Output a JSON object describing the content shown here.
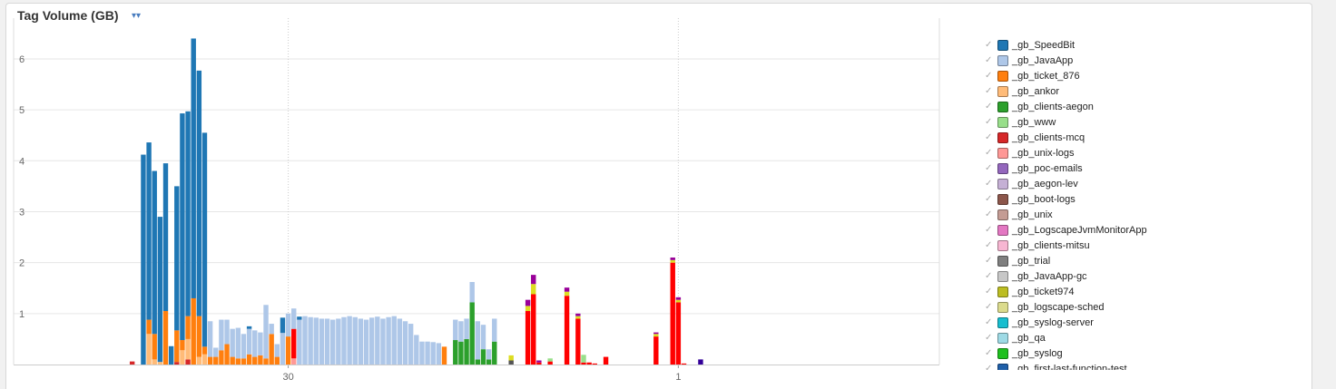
{
  "panel": {
    "title": "Tag Volume (GB)",
    "chevron_icon": "chevron-double-down-icon"
  },
  "legend": {
    "check_glyph": "✓",
    "items": [
      {
        "label": "_gb_SpeedBit",
        "color": "#1f77b4"
      },
      {
        "label": "_gb_JavaApp",
        "color": "#aec7e8"
      },
      {
        "label": "_gb_ticket_876",
        "color": "#ff7f0e"
      },
      {
        "label": "_gb_ankor",
        "color": "#ffbb78"
      },
      {
        "label": "_gb_clients-aegon",
        "color": "#2ca02c"
      },
      {
        "label": "_gb_www",
        "color": "#98df8a"
      },
      {
        "label": "_gb_clients-mcq",
        "color": "#d62728"
      },
      {
        "label": "_gb_unix-logs",
        "color": "#ff9896"
      },
      {
        "label": "_gb_poc-emails",
        "color": "#9467bd"
      },
      {
        "label": "_gb_aegon-lev",
        "color": "#c5b0d5"
      },
      {
        "label": "_gb_boot-logs",
        "color": "#8c564b"
      },
      {
        "label": "_gb_unix",
        "color": "#c49c94"
      },
      {
        "label": "_gb_LogscapeJvmMonitorApp",
        "color": "#e377c2"
      },
      {
        "label": "_gb_clients-mitsu",
        "color": "#f7b6d2"
      },
      {
        "label": "_gb_trial",
        "color": "#7f7f7f"
      },
      {
        "label": "_gb_JavaApp-gc",
        "color": "#c7c7c7"
      },
      {
        "label": "_gb_ticket974",
        "color": "#bcbd22"
      },
      {
        "label": "_gb_logscape-sched",
        "color": "#dbdb8d"
      },
      {
        "label": "_gb_syslog-server",
        "color": "#17becf"
      },
      {
        "label": "_gb_qa",
        "color": "#9edae5"
      },
      {
        "label": "_gb_syslog",
        "color": "#1ec01e"
      },
      {
        "label": "_gb_first-last-function-test",
        "color": "#1f5fa8"
      }
    ]
  },
  "chart_data": {
    "type": "bar",
    "stacked": true,
    "yticks": [
      "1",
      "2",
      "3",
      "4",
      "5",
      "6"
    ],
    "ylim": [
      0,
      6.8
    ],
    "xticks": [
      {
        "label": "30",
        "index": 42
      },
      {
        "label": "1",
        "index": 112
      }
    ],
    "grid": true,
    "legend_placement": "right",
    "extra_colors": {
      "bright_red": "#ff0000",
      "magenta": "#990099",
      "yellow": "#dddd22",
      "navy": "#330099",
      "dark_green": "#229922"
    },
    "bars": [
      {
        "i": 14,
        "stack": [
          {
            "c": "#d62728",
            "v": 0.06
          }
        ]
      },
      {
        "i": 16,
        "stack": [
          {
            "c": "#1f77b4",
            "v": 4.12
          }
        ]
      },
      {
        "i": 17,
        "stack": [
          {
            "c": "#ffbb78",
            "v": 0.6
          },
          {
            "c": "#ff7f0e",
            "v": 0.28
          },
          {
            "c": "#1f77b4",
            "v": 3.48
          }
        ]
      },
      {
        "i": 18,
        "stack": [
          {
            "c": "#ffbb78",
            "v": 0.1
          },
          {
            "c": "#ff7f0e",
            "v": 0.5
          },
          {
            "c": "#1f77b4",
            "v": 3.2
          }
        ]
      },
      {
        "i": 19,
        "stack": [
          {
            "c": "#ffbb78",
            "v": 0.05
          },
          {
            "c": "#1f77b4",
            "v": 2.85
          }
        ]
      },
      {
        "i": 20,
        "stack": [
          {
            "c": "#ff7f0e",
            "v": 1.05
          },
          {
            "c": "#1f77b4",
            "v": 2.9
          }
        ]
      },
      {
        "i": 21,
        "stack": [
          {
            "c": "#1f77b4",
            "v": 0.36
          }
        ]
      },
      {
        "i": 22,
        "stack": [
          {
            "c": "#d62728",
            "v": 0.05
          },
          {
            "c": "#ff7f0e",
            "v": 0.62
          },
          {
            "c": "#1f77b4",
            "v": 2.83
          }
        ]
      },
      {
        "i": 23,
        "stack": [
          {
            "c": "#ffbb78",
            "v": 0.28
          },
          {
            "c": "#ff7f0e",
            "v": 0.2
          },
          {
            "c": "#1f77b4",
            "v": 4.45
          }
        ]
      },
      {
        "i": 24,
        "stack": [
          {
            "c": "#d62728",
            "v": 0.1
          },
          {
            "c": "#ffbb78",
            "v": 0.4
          },
          {
            "c": "#ff7f0e",
            "v": 0.45
          },
          {
            "c": "#1f77b4",
            "v": 4.02
          }
        ]
      },
      {
        "i": 25,
        "stack": [
          {
            "c": "#ff7f0e",
            "v": 1.3
          },
          {
            "c": "#1f77b4",
            "v": 5.1
          }
        ]
      },
      {
        "i": 26,
        "stack": [
          {
            "c": "#ffbb78",
            "v": 0.15
          },
          {
            "c": "#ff7f0e",
            "v": 0.8
          },
          {
            "c": "#1f77b4",
            "v": 4.82
          }
        ]
      },
      {
        "i": 27,
        "stack": [
          {
            "c": "#ffbb78",
            "v": 0.2
          },
          {
            "c": "#ff7f0e",
            "v": 0.15
          },
          {
            "c": "#1f77b4",
            "v": 4.2
          }
        ]
      },
      {
        "i": 28,
        "stack": [
          {
            "c": "#ff7f0e",
            "v": 0.15
          },
          {
            "c": "#aec7e8",
            "v": 0.7
          }
        ]
      },
      {
        "i": 29,
        "stack": [
          {
            "c": "#ff7f0e",
            "v": 0.15
          },
          {
            "c": "#aec7e8",
            "v": 0.18
          }
        ]
      },
      {
        "i": 30,
        "stack": [
          {
            "c": "#ff7f0e",
            "v": 0.28
          },
          {
            "c": "#aec7e8",
            "v": 0.6
          }
        ]
      },
      {
        "i": 31,
        "stack": [
          {
            "c": "#ff7f0e",
            "v": 0.4
          },
          {
            "c": "#aec7e8",
            "v": 0.48
          }
        ]
      },
      {
        "i": 32,
        "stack": [
          {
            "c": "#ff7f0e",
            "v": 0.15
          },
          {
            "c": "#aec7e8",
            "v": 0.55
          }
        ]
      },
      {
        "i": 33,
        "stack": [
          {
            "c": "#ff7f0e",
            "v": 0.12
          },
          {
            "c": "#aec7e8",
            "v": 0.6
          }
        ]
      },
      {
        "i": 34,
        "stack": [
          {
            "c": "#ff7f0e",
            "v": 0.12
          },
          {
            "c": "#aec7e8",
            "v": 0.48
          }
        ]
      },
      {
        "i": 35,
        "stack": [
          {
            "c": "#ff7f0e",
            "v": 0.2
          },
          {
            "c": "#aec7e8",
            "v": 0.5
          },
          {
            "c": "#1f77b4",
            "v": 0.05
          }
        ]
      },
      {
        "i": 36,
        "stack": [
          {
            "c": "#ff7f0e",
            "v": 0.15
          },
          {
            "c": "#aec7e8",
            "v": 0.52
          }
        ]
      },
      {
        "i": 37,
        "stack": [
          {
            "c": "#ff7f0e",
            "v": 0.18
          },
          {
            "c": "#aec7e8",
            "v": 0.45
          }
        ]
      },
      {
        "i": 38,
        "stack": [
          {
            "c": "#ff7f0e",
            "v": 0.12
          },
          {
            "c": "#aec7e8",
            "v": 1.05
          }
        ]
      },
      {
        "i": 39,
        "stack": [
          {
            "c": "#ff7f0e",
            "v": 0.6
          },
          {
            "c": "#aec7e8",
            "v": 0.2
          }
        ]
      },
      {
        "i": 40,
        "stack": [
          {
            "c": "#ff7f0e",
            "v": 0.15
          },
          {
            "c": "#aec7e8",
            "v": 0.25
          }
        ]
      },
      {
        "i": 41,
        "stack": [
          {
            "c": "#aec7e8",
            "v": 0.62
          },
          {
            "c": "#1f77b4",
            "v": 0.3
          }
        ]
      },
      {
        "i": 42,
        "stack": [
          {
            "c": "#ff7f0e",
            "v": 0.55
          },
          {
            "c": "#aec7e8",
            "v": 0.45
          }
        ]
      },
      {
        "i": 43,
        "stack": [
          {
            "c": "#ff9896",
            "v": 0.12
          },
          {
            "c": "#ff0000",
            "v": 0.58
          },
          {
            "c": "#aec7e8",
            "v": 0.4
          }
        ]
      },
      {
        "i": 44,
        "stack": [
          {
            "c": "#aec7e8",
            "v": 0.88
          },
          {
            "c": "#1f77b4",
            "v": 0.06
          }
        ]
      },
      {
        "i": 45,
        "stack": [
          {
            "c": "#aec7e8",
            "v": 0.95
          }
        ]
      },
      {
        "i": 46,
        "stack": [
          {
            "c": "#aec7e8",
            "v": 0.93
          }
        ]
      },
      {
        "i": 47,
        "stack": [
          {
            "c": "#aec7e8",
            "v": 0.92
          }
        ]
      },
      {
        "i": 48,
        "stack": [
          {
            "c": "#aec7e8",
            "v": 0.9
          }
        ]
      },
      {
        "i": 49,
        "stack": [
          {
            "c": "#aec7e8",
            "v": 0.9
          }
        ]
      },
      {
        "i": 50,
        "stack": [
          {
            "c": "#aec7e8",
            "v": 0.88
          }
        ]
      },
      {
        "i": 51,
        "stack": [
          {
            "c": "#aec7e8",
            "v": 0.9
          }
        ]
      },
      {
        "i": 52,
        "stack": [
          {
            "c": "#aec7e8",
            "v": 0.93
          }
        ]
      },
      {
        "i": 53,
        "stack": [
          {
            "c": "#aec7e8",
            "v": 0.95
          }
        ]
      },
      {
        "i": 54,
        "stack": [
          {
            "c": "#aec7e8",
            "v": 0.93
          }
        ]
      },
      {
        "i": 55,
        "stack": [
          {
            "c": "#aec7e8",
            "v": 0.9
          }
        ]
      },
      {
        "i": 56,
        "stack": [
          {
            "c": "#aec7e8",
            "v": 0.88
          }
        ]
      },
      {
        "i": 57,
        "stack": [
          {
            "c": "#aec7e8",
            "v": 0.92
          }
        ]
      },
      {
        "i": 58,
        "stack": [
          {
            "c": "#aec7e8",
            "v": 0.94
          }
        ]
      },
      {
        "i": 59,
        "stack": [
          {
            "c": "#aec7e8",
            "v": 0.9
          }
        ]
      },
      {
        "i": 60,
        "stack": [
          {
            "c": "#aec7e8",
            "v": 0.93
          }
        ]
      },
      {
        "i": 61,
        "stack": [
          {
            "c": "#aec7e8",
            "v": 0.95
          }
        ]
      },
      {
        "i": 62,
        "stack": [
          {
            "c": "#aec7e8",
            "v": 0.9
          }
        ]
      },
      {
        "i": 63,
        "stack": [
          {
            "c": "#aec7e8",
            "v": 0.85
          }
        ]
      },
      {
        "i": 64,
        "stack": [
          {
            "c": "#aec7e8",
            "v": 0.8
          }
        ]
      },
      {
        "i": 65,
        "stack": [
          {
            "c": "#aec7e8",
            "v": 0.58
          }
        ]
      },
      {
        "i": 66,
        "stack": [
          {
            "c": "#aec7e8",
            "v": 0.45
          }
        ]
      },
      {
        "i": 67,
        "stack": [
          {
            "c": "#aec7e8",
            "v": 0.45
          }
        ]
      },
      {
        "i": 68,
        "stack": [
          {
            "c": "#aec7e8",
            "v": 0.44
          }
        ]
      },
      {
        "i": 69,
        "stack": [
          {
            "c": "#aec7e8",
            "v": 0.42
          }
        ]
      },
      {
        "i": 70,
        "stack": [
          {
            "c": "#ff7f0e",
            "v": 0.35
          }
        ]
      },
      {
        "i": 72,
        "stack": [
          {
            "c": "#2ca02c",
            "v": 0.48
          },
          {
            "c": "#aec7e8",
            "v": 0.4
          }
        ]
      },
      {
        "i": 73,
        "stack": [
          {
            "c": "#2ca02c",
            "v": 0.45
          },
          {
            "c": "#aec7e8",
            "v": 0.4
          }
        ]
      },
      {
        "i": 74,
        "stack": [
          {
            "c": "#2ca02c",
            "v": 0.5
          },
          {
            "c": "#aec7e8",
            "v": 0.4
          }
        ]
      },
      {
        "i": 75,
        "stack": [
          {
            "c": "#2ca02c",
            "v": 1.22
          },
          {
            "c": "#aec7e8",
            "v": 0.4
          }
        ]
      },
      {
        "i": 76,
        "stack": [
          {
            "c": "#2ca02c",
            "v": 0.1
          },
          {
            "c": "#aec7e8",
            "v": 0.75
          }
        ]
      },
      {
        "i": 77,
        "stack": [
          {
            "c": "#2ca02c",
            "v": 0.3
          },
          {
            "c": "#aec7e8",
            "v": 0.48
          }
        ]
      },
      {
        "i": 78,
        "stack": [
          {
            "c": "#2ca02c",
            "v": 0.1
          },
          {
            "c": "#aec7e8",
            "v": 0.2
          }
        ]
      },
      {
        "i": 79,
        "stack": [
          {
            "c": "#2ca02c",
            "v": 0.45
          },
          {
            "c": "#aec7e8",
            "v": 0.45
          }
        ]
      },
      {
        "i": 82,
        "stack": [
          {
            "c": "#555555",
            "v": 0.08
          },
          {
            "c": "#dddd22",
            "v": 0.1
          }
        ]
      },
      {
        "i": 85,
        "stack": [
          {
            "c": "#ff0000",
            "v": 1.05
          },
          {
            "c": "#dddd22",
            "v": 0.1
          },
          {
            "c": "#990099",
            "v": 0.12
          }
        ]
      },
      {
        "i": 86,
        "stack": [
          {
            "c": "#ff0000",
            "v": 1.38
          },
          {
            "c": "#dddd22",
            "v": 0.2
          },
          {
            "c": "#990099",
            "v": 0.18
          }
        ]
      },
      {
        "i": 87,
        "stack": [
          {
            "c": "#ff0000",
            "v": 0.04
          },
          {
            "c": "#990099",
            "v": 0.04
          }
        ]
      },
      {
        "i": 89,
        "stack": [
          {
            "c": "#ff0000",
            "v": 0.06
          },
          {
            "c": "#98df8a",
            "v": 0.06
          }
        ]
      },
      {
        "i": 92,
        "stack": [
          {
            "c": "#ff0000",
            "v": 1.35
          },
          {
            "c": "#dddd22",
            "v": 0.08
          },
          {
            "c": "#990099",
            "v": 0.08
          }
        ]
      },
      {
        "i": 94,
        "stack": [
          {
            "c": "#ff0000",
            "v": 0.9
          },
          {
            "c": "#dddd22",
            "v": 0.05
          },
          {
            "c": "#990099",
            "v": 0.05
          }
        ]
      },
      {
        "i": 95,
        "stack": [
          {
            "c": "#ff0000",
            "v": 0.04
          },
          {
            "c": "#98df8a",
            "v": 0.15
          }
        ]
      },
      {
        "i": 96,
        "stack": [
          {
            "c": "#ff0000",
            "v": 0.04
          }
        ]
      },
      {
        "i": 97,
        "stack": [
          {
            "c": "#ff0000",
            "v": 0.02
          }
        ]
      },
      {
        "i": 99,
        "stack": [
          {
            "c": "#ff0000",
            "v": 0.15
          }
        ]
      },
      {
        "i": 108,
        "stack": [
          {
            "c": "#ff0000",
            "v": 0.55
          },
          {
            "c": "#dddd22",
            "v": 0.05
          },
          {
            "c": "#990099",
            "v": 0.03
          }
        ]
      },
      {
        "i": 111,
        "stack": [
          {
            "c": "#ff0000",
            "v": 2.0
          },
          {
            "c": "#dddd22",
            "v": 0.05
          },
          {
            "c": "#990099",
            "v": 0.05
          }
        ]
      },
      {
        "i": 112,
        "stack": [
          {
            "c": "#ff0000",
            "v": 1.22
          },
          {
            "c": "#dddd22",
            "v": 0.05
          },
          {
            "c": "#990099",
            "v": 0.05
          }
        ]
      },
      {
        "i": 113,
        "stack": [
          {
            "c": "#ff0000",
            "v": 0.02
          }
        ]
      },
      {
        "i": 116,
        "stack": [
          {
            "c": "#330099",
            "v": 0.1
          }
        ]
      }
    ]
  }
}
